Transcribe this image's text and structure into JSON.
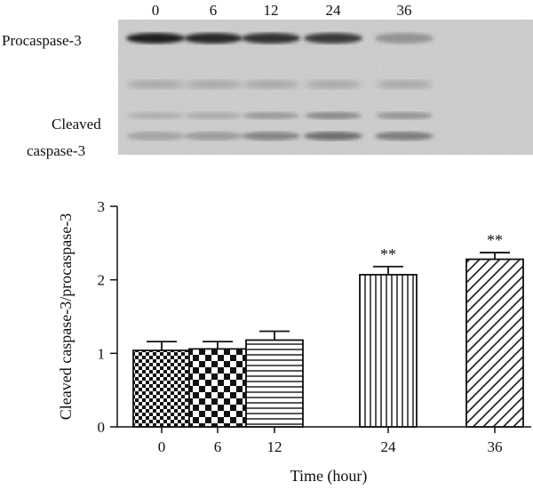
{
  "blot": {
    "lanes": [
      "0",
      "6",
      "12",
      "24",
      "36"
    ],
    "bands": [
      "Procaspase-3",
      "Cleaved",
      "caspase-3"
    ]
  },
  "chart_data": {
    "type": "bar",
    "title": "",
    "xlabel": "Time (hour)",
    "ylabel": "Cleaved caspase-3/procaspase-3",
    "categories": [
      "0",
      "6",
      "12",
      "24",
      "36"
    ],
    "values": [
      1.04,
      1.06,
      1.18,
      2.07,
      2.28
    ],
    "errors": [
      0.12,
      0.1,
      0.12,
      0.11,
      0.09
    ],
    "annotations": [
      "",
      "",
      "",
      "**",
      "**"
    ],
    "patterns": [
      "small-checker",
      "large-checker",
      "horizontal-lines",
      "vertical-lines",
      "diagonal-lines"
    ],
    "ylim": [
      0,
      3
    ],
    "yticks": [
      0,
      1,
      2,
      3
    ],
    "grid": false,
    "legend": "none"
  }
}
